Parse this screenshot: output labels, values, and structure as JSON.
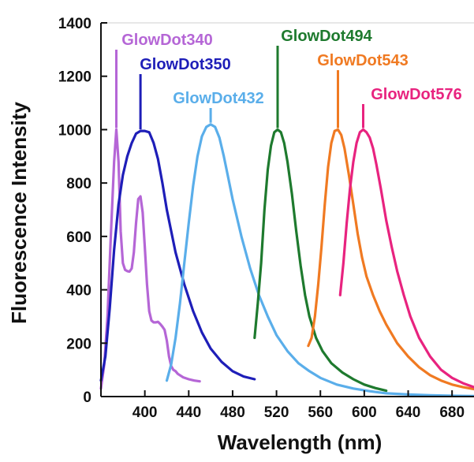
{
  "chart_data": {
    "type": "line",
    "title": "",
    "xlabel": "Wavelength (nm)",
    "ylabel": "Fluorescence Intensity",
    "xlim": [
      360,
      700
    ],
    "ylim": [
      0,
      1400
    ],
    "x_ticks": [
      400,
      440,
      480,
      520,
      560,
      600,
      640,
      680
    ],
    "y_ticks": [
      0,
      200,
      400,
      600,
      800,
      1000,
      1200,
      1400
    ],
    "grid": false,
    "legend": "none",
    "series": [
      {
        "name": "GlowDot340",
        "color": "#B566D6",
        "label_anchor": [
          380,
          1300
        ],
        "x": [
          360,
          363,
          366,
          369,
          372,
          374,
          376,
          378,
          380,
          382,
          384,
          386,
          388,
          390,
          392,
          394,
          396,
          398,
          400,
          402,
          404,
          406,
          408,
          410,
          412,
          414,
          416,
          418,
          420,
          422,
          424,
          426,
          428,
          430,
          435,
          440,
          445,
          450
        ],
        "y": [
          30,
          120,
          300,
          600,
          880,
          1000,
          880,
          620,
          500,
          475,
          470,
          468,
          480,
          540,
          650,
          740,
          750,
          690,
          560,
          420,
          320,
          285,
          278,
          278,
          280,
          272,
          262,
          250,
          210,
          150,
          115,
          100,
          95,
          85,
          72,
          65,
          60,
          57
        ]
      },
      {
        "name": "GlowDot350",
        "color": "#1E1EB8",
        "label_anchor": [
          403,
          1150
        ],
        "x": [
          360,
          364,
          368,
          372,
          376,
          380,
          384,
          388,
          392,
          396,
          400,
          404,
          408,
          412,
          416,
          420,
          428,
          436,
          444,
          452,
          460,
          470,
          480,
          490,
          500
        ],
        "y": [
          60,
          150,
          330,
          550,
          720,
          830,
          900,
          950,
          985,
          995,
          995,
          990,
          950,
          890,
          800,
          700,
          540,
          420,
          320,
          240,
          180,
          130,
          95,
          75,
          65
        ]
      },
      {
        "name": "GlowDot432",
        "color": "#5AAEEA",
        "label_anchor": [
          460,
          1080
        ],
        "x": [
          420,
          424,
          428,
          432,
          436,
          440,
          444,
          448,
          452,
          456,
          460,
          464,
          468,
          472,
          476,
          480,
          488,
          496,
          504,
          512,
          520,
          530,
          540,
          550,
          560,
          575,
          590,
          605,
          620,
          640,
          660,
          680,
          700
        ],
        "y": [
          60,
          120,
          220,
          350,
          500,
          650,
          790,
          900,
          975,
          1010,
          1020,
          1010,
          970,
          900,
          820,
          740,
          600,
          480,
          380,
          300,
          230,
          170,
          125,
          95,
          70,
          45,
          30,
          20,
          12,
          8,
          5,
          3,
          2
        ]
      },
      {
        "name": "GlowDot494",
        "color": "#1E7A2E",
        "label_anchor": [
          521,
          1310
        ],
        "x": [
          500,
          503,
          506,
          509,
          512,
          515,
          518,
          521,
          524,
          527,
          530,
          534,
          538,
          542,
          546,
          550,
          556,
          562,
          570,
          580,
          590,
          600,
          610,
          620
        ],
        "y": [
          220,
          350,
          500,
          700,
          850,
          940,
          990,
          1000,
          990,
          950,
          880,
          760,
          620,
          490,
          380,
          300,
          220,
          170,
          125,
          90,
          65,
          45,
          32,
          22
        ]
      },
      {
        "name": "GlowDot543",
        "color": "#F07A22",
        "label_anchor": [
          575,
          1220
        ],
        "x": [
          549,
          552,
          555,
          558,
          561,
          564,
          567,
          570,
          573,
          576,
          579,
          582,
          586,
          590,
          594,
          598,
          602,
          608,
          614,
          620,
          630,
          640,
          650,
          660,
          670,
          680,
          690,
          700
        ],
        "y": [
          190,
          220,
          300,
          420,
          560,
          720,
          860,
          950,
          995,
          1000,
          980,
          930,
          830,
          720,
          610,
          520,
          450,
          380,
          320,
          270,
          200,
          150,
          110,
          80,
          60,
          45,
          35,
          28
        ]
      },
      {
        "name": "GlowDot576",
        "color": "#E8237F",
        "label_anchor": [
          604,
          1150
        ],
        "x": [
          578,
          581,
          584,
          587,
          590,
          593,
          596,
          599,
          602,
          605,
          608,
          611,
          615,
          620,
          625,
          630,
          636,
          642,
          650,
          660,
          670,
          680,
          690,
          700
        ],
        "y": [
          380,
          500,
          650,
          780,
          880,
          950,
          990,
          1000,
          990,
          970,
          930,
          870,
          780,
          660,
          560,
          470,
          380,
          300,
          220,
          150,
          100,
          70,
          50,
          35
        ]
      }
    ]
  }
}
